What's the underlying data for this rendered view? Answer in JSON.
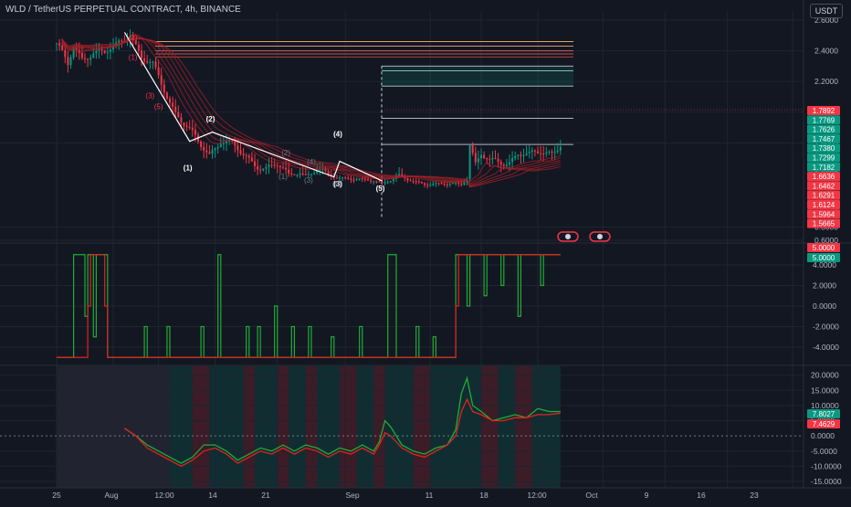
{
  "header": {
    "title": "WLD / TetherUS PERPETUAL CONTRACT, 4h, BINANCE",
    "currency_button": "USDT"
  },
  "colors": {
    "background": "#131722",
    "grid": "#1f2430",
    "text": "#b2b5be",
    "up": "#089981",
    "down": "#f23645",
    "green_line": "#22ab36",
    "red_line": "#e0241e",
    "white_line": "#ffffff",
    "ema_ribbon": "#a5222a"
  },
  "chart_data": [
    {
      "type": "candlestick",
      "name": "price",
      "ylim": [
        0.6,
        2.7
      ],
      "y_ticks": [
        "2.6000",
        "2.4000",
        "2.2000",
        "2.0000",
        "1.8000",
        "1.6000",
        "0.8000",
        "0.6000"
      ],
      "x_ticks": [
        "25",
        "Aug",
        "12:00",
        "14",
        "21",
        "Sep",
        "11",
        "18",
        "12:00",
        "Oct",
        "9",
        "16",
        "23"
      ],
      "price_path": [
        [
          0,
          2.45
        ],
        [
          4,
          2.3
        ],
        [
          6,
          2.42
        ],
        [
          9,
          2.35
        ],
        [
          13,
          2.4
        ],
        [
          17,
          2.38
        ],
        [
          21,
          2.43
        ],
        [
          26,
          2.52
        ],
        [
          30,
          2.35
        ],
        [
          34,
          2.3
        ],
        [
          38,
          2.15
        ],
        [
          42,
          2.0
        ],
        [
          46,
          1.9
        ],
        [
          50,
          1.8
        ],
        [
          54,
          1.73
        ],
        [
          58,
          1.82
        ],
        [
          62,
          1.78
        ],
        [
          66,
          1.72
        ],
        [
          70,
          1.67
        ],
        [
          74,
          1.63
        ],
        [
          78,
          1.65
        ],
        [
          82,
          1.59
        ],
        [
          86,
          1.62
        ],
        [
          88,
          1.57
        ],
        [
          92,
          1.62
        ],
        [
          96,
          1.58
        ],
        [
          100,
          1.55
        ],
        [
          104,
          1.52
        ],
        [
          108,
          1.49
        ],
        [
          112,
          1.5
        ],
        [
          115,
          1.47
        ],
        [
          118,
          1.51
        ],
        [
          121,
          1.56
        ],
        [
          124,
          1.5
        ],
        [
          128,
          1.47
        ],
        [
          132,
          1.45
        ],
        [
          136,
          1.43
        ],
        [
          140,
          1.44
        ],
        [
          143,
          1.45
        ],
        [
          145,
          1.55
        ],
        [
          146,
          1.8
        ],
        [
          148,
          1.66
        ],
        [
          150,
          1.72
        ],
        [
          153,
          1.67
        ],
        [
          156,
          1.68
        ],
        [
          160,
          1.68
        ],
        [
          163,
          1.73
        ],
        [
          167,
          1.71
        ],
        [
          171,
          1.75
        ],
        [
          175,
          1.74
        ],
        [
          178,
          1.79
        ]
      ],
      "last_price": "1.7892",
      "price_labels": [
        {
          "text": "1.7892",
          "kind": "last"
        },
        {
          "text": "1.7769",
          "kind": "green"
        },
        {
          "text": "1.7626",
          "kind": "green"
        },
        {
          "text": "1.7467",
          "kind": "green"
        },
        {
          "text": "1.7380",
          "kind": "green"
        },
        {
          "text": "1.7299",
          "kind": "green"
        },
        {
          "text": "1.7182",
          "kind": "green"
        },
        {
          "text": "1.6636",
          "kind": "red"
        },
        {
          "text": "1.6462",
          "kind": "red"
        },
        {
          "text": "1.6291",
          "kind": "red"
        },
        {
          "text": "1.6124",
          "kind": "red"
        },
        {
          "text": "1.5964",
          "kind": "red"
        },
        {
          "text": "1.5665",
          "kind": "red"
        }
      ],
      "elliott_primary": {
        "points": [
          [
            26,
            2.52
          ],
          [
            42,
            1.9
          ],
          [
            50,
            1.8
          ],
          [
            88,
            1.57
          ],
          [
            88,
            1.57
          ],
          [
            94,
            1.62
          ],
          [
            100,
            1.55
          ],
          [
            108,
            1.49
          ]
        ],
        "labels": [
          "(2)",
          "(1)",
          "(4)",
          "(3)",
          "(5)"
        ]
      },
      "elliott_secondary_labels": [
        "(2)",
        "(1)",
        "(3)",
        "(5)",
        "(2)",
        "(4)",
        "(1)",
        "(3)",
        "(5)"
      ],
      "target_levels_upper": [
        2.46,
        2.43,
        2.4,
        2.38,
        2.36
      ],
      "target_levels_lower": [
        2.3,
        2.27,
        2.17,
        1.96,
        1.79
      ]
    },
    {
      "type": "step-line",
      "name": "oscillator",
      "ylim": [
        -5,
        5
      ],
      "y_ticks": [
        "4.0000",
        "2.0000",
        "0.0000",
        "-2.0000",
        "-4.0000"
      ],
      "current_values": [
        "5.0000",
        "5.0000"
      ],
      "green_path": [
        [
          0,
          -5
        ],
        [
          4,
          -5
        ],
        [
          6,
          5
        ],
        [
          9,
          5
        ],
        [
          10,
          -1
        ],
        [
          11,
          5
        ],
        [
          13,
          -3
        ],
        [
          14,
          5
        ],
        [
          16,
          5
        ],
        [
          18,
          -5
        ],
        [
          30,
          -5
        ],
        [
          31,
          -2
        ],
        [
          32,
          -5
        ],
        [
          38,
          -5
        ],
        [
          39,
          -2
        ],
        [
          40,
          -5
        ],
        [
          50,
          -5
        ],
        [
          51,
          -2
        ],
        [
          52,
          -5
        ],
        [
          56,
          -5
        ],
        [
          57,
          5
        ],
        [
          58,
          -5
        ],
        [
          66,
          -5
        ],
        [
          67,
          -2
        ],
        [
          68,
          -5
        ],
        [
          70,
          -5
        ],
        [
          71,
          -2
        ],
        [
          72,
          -5
        ],
        [
          76,
          -5
        ],
        [
          77,
          0
        ],
        [
          78,
          -5
        ],
        [
          82,
          -5
        ],
        [
          83,
          -2
        ],
        [
          84,
          -5
        ],
        [
          88,
          -5
        ],
        [
          89,
          -2
        ],
        [
          90,
          -5
        ],
        [
          96,
          -5
        ],
        [
          97,
          -3
        ],
        [
          98,
          -5
        ],
        [
          106,
          -5
        ],
        [
          107,
          -2
        ],
        [
          108,
          -5
        ],
        [
          116,
          -5
        ],
        [
          117,
          5
        ],
        [
          119,
          5
        ],
        [
          120,
          -5
        ],
        [
          126,
          -5
        ],
        [
          127,
          -2
        ],
        [
          128,
          -5
        ],
        [
          132,
          -5
        ],
        [
          133,
          -3
        ],
        [
          134,
          -5
        ],
        [
          140,
          -5
        ],
        [
          141,
          5
        ],
        [
          144,
          5
        ],
        [
          145,
          0
        ],
        [
          146,
          5
        ],
        [
          150,
          5
        ],
        [
          151,
          1
        ],
        [
          152,
          5
        ],
        [
          156,
          5
        ],
        [
          157,
          2
        ],
        [
          158,
          5
        ],
        [
          162,
          5
        ],
        [
          163,
          -1
        ],
        [
          164,
          5
        ],
        [
          170,
          5
        ],
        [
          171,
          2
        ],
        [
          172,
          5
        ],
        [
          178,
          5
        ]
      ],
      "red_path": [
        [
          0,
          -5
        ],
        [
          10,
          -5
        ],
        [
          11,
          0
        ],
        [
          12,
          5
        ],
        [
          16,
          5
        ],
        [
          17,
          0
        ],
        [
          18,
          -5
        ],
        [
          140,
          -5
        ],
        [
          141,
          0
        ],
        [
          142,
          5
        ],
        [
          178,
          5
        ]
      ]
    },
    {
      "type": "line",
      "name": "momentum",
      "ylim": [
        -17,
        22
      ],
      "y_ticks": [
        "20.0000",
        "15.0000",
        "10.0000",
        "5.0000",
        "0.0000",
        "-5.0000",
        "-10.0000",
        "-15.0000"
      ],
      "current_values": [
        "7.8027",
        "7.4629"
      ],
      "green_series": [
        [
          24,
          2.5
        ],
        [
          28,
          0
        ],
        [
          32,
          -3
        ],
        [
          38,
          -6
        ],
        [
          44,
          -9
        ],
        [
          48,
          -7
        ],
        [
          52,
          -3
        ],
        [
          56,
          -3
        ],
        [
          60,
          -5
        ],
        [
          64,
          -8
        ],
        [
          68,
          -6
        ],
        [
          72,
          -4
        ],
        [
          76,
          -5
        ],
        [
          80,
          -3
        ],
        [
          84,
          -5
        ],
        [
          88,
          -3
        ],
        [
          92,
          -4
        ],
        [
          96,
          -6
        ],
        [
          100,
          -4
        ],
        [
          104,
          -5
        ],
        [
          108,
          -3
        ],
        [
          112,
          -5
        ],
        [
          114,
          -2
        ],
        [
          116,
          5
        ],
        [
          118,
          3
        ],
        [
          122,
          -3
        ],
        [
          126,
          -5
        ],
        [
          130,
          -6
        ],
        [
          134,
          -4
        ],
        [
          138,
          -3
        ],
        [
          141,
          2
        ],
        [
          143,
          14
        ],
        [
          145,
          19
        ],
        [
          147,
          10
        ],
        [
          150,
          8
        ],
        [
          154,
          5
        ],
        [
          158,
          6
        ],
        [
          162,
          7
        ],
        [
          166,
          6
        ],
        [
          170,
          9
        ],
        [
          174,
          8
        ],
        [
          178,
          8
        ]
      ],
      "red_series": [
        [
          24,
          2.5
        ],
        [
          28,
          0
        ],
        [
          32,
          -4
        ],
        [
          38,
          -7
        ],
        [
          44,
          -10
        ],
        [
          48,
          -8
        ],
        [
          52,
          -5
        ],
        [
          56,
          -4
        ],
        [
          60,
          -6
        ],
        [
          64,
          -9
        ],
        [
          68,
          -7
        ],
        [
          72,
          -5
        ],
        [
          76,
          -6
        ],
        [
          80,
          -4
        ],
        [
          84,
          -6
        ],
        [
          88,
          -4
        ],
        [
          92,
          -5
        ],
        [
          96,
          -7
        ],
        [
          100,
          -5
        ],
        [
          104,
          -6
        ],
        [
          108,
          -4
        ],
        [
          112,
          -6
        ],
        [
          114,
          -3
        ],
        [
          116,
          1
        ],
        [
          118,
          0
        ],
        [
          122,
          -4
        ],
        [
          126,
          -6
        ],
        [
          130,
          -7
        ],
        [
          134,
          -5
        ],
        [
          138,
          -3
        ],
        [
          141,
          0
        ],
        [
          143,
          8
        ],
        [
          145,
          12
        ],
        [
          147,
          8
        ],
        [
          150,
          7
        ],
        [
          154,
          5
        ],
        [
          158,
          5
        ],
        [
          162,
          6
        ],
        [
          166,
          6
        ],
        [
          170,
          7
        ],
        [
          174,
          7
        ],
        [
          178,
          7.5
        ]
      ],
      "zero_line": true,
      "background_bands": [
        [
          0,
          40,
          "neutral"
        ],
        [
          40,
          48,
          "green"
        ],
        [
          48,
          54,
          "red"
        ],
        [
          54,
          66,
          "green"
        ],
        [
          66,
          70,
          "red"
        ],
        [
          70,
          78,
          "green"
        ],
        [
          78,
          82,
          "red"
        ],
        [
          82,
          88,
          "green"
        ],
        [
          88,
          92,
          "red"
        ],
        [
          92,
          100,
          "green"
        ],
        [
          100,
          106,
          "red"
        ],
        [
          106,
          112,
          "green"
        ],
        [
          112,
          116,
          "red"
        ],
        [
          116,
          126,
          "green"
        ],
        [
          126,
          132,
          "red"
        ],
        [
          132,
          140,
          "green"
        ],
        [
          140,
          150,
          "green"
        ],
        [
          150,
          156,
          "red"
        ],
        [
          156,
          162,
          "green"
        ],
        [
          162,
          168,
          "red"
        ],
        [
          168,
          178,
          "green"
        ]
      ]
    }
  ]
}
